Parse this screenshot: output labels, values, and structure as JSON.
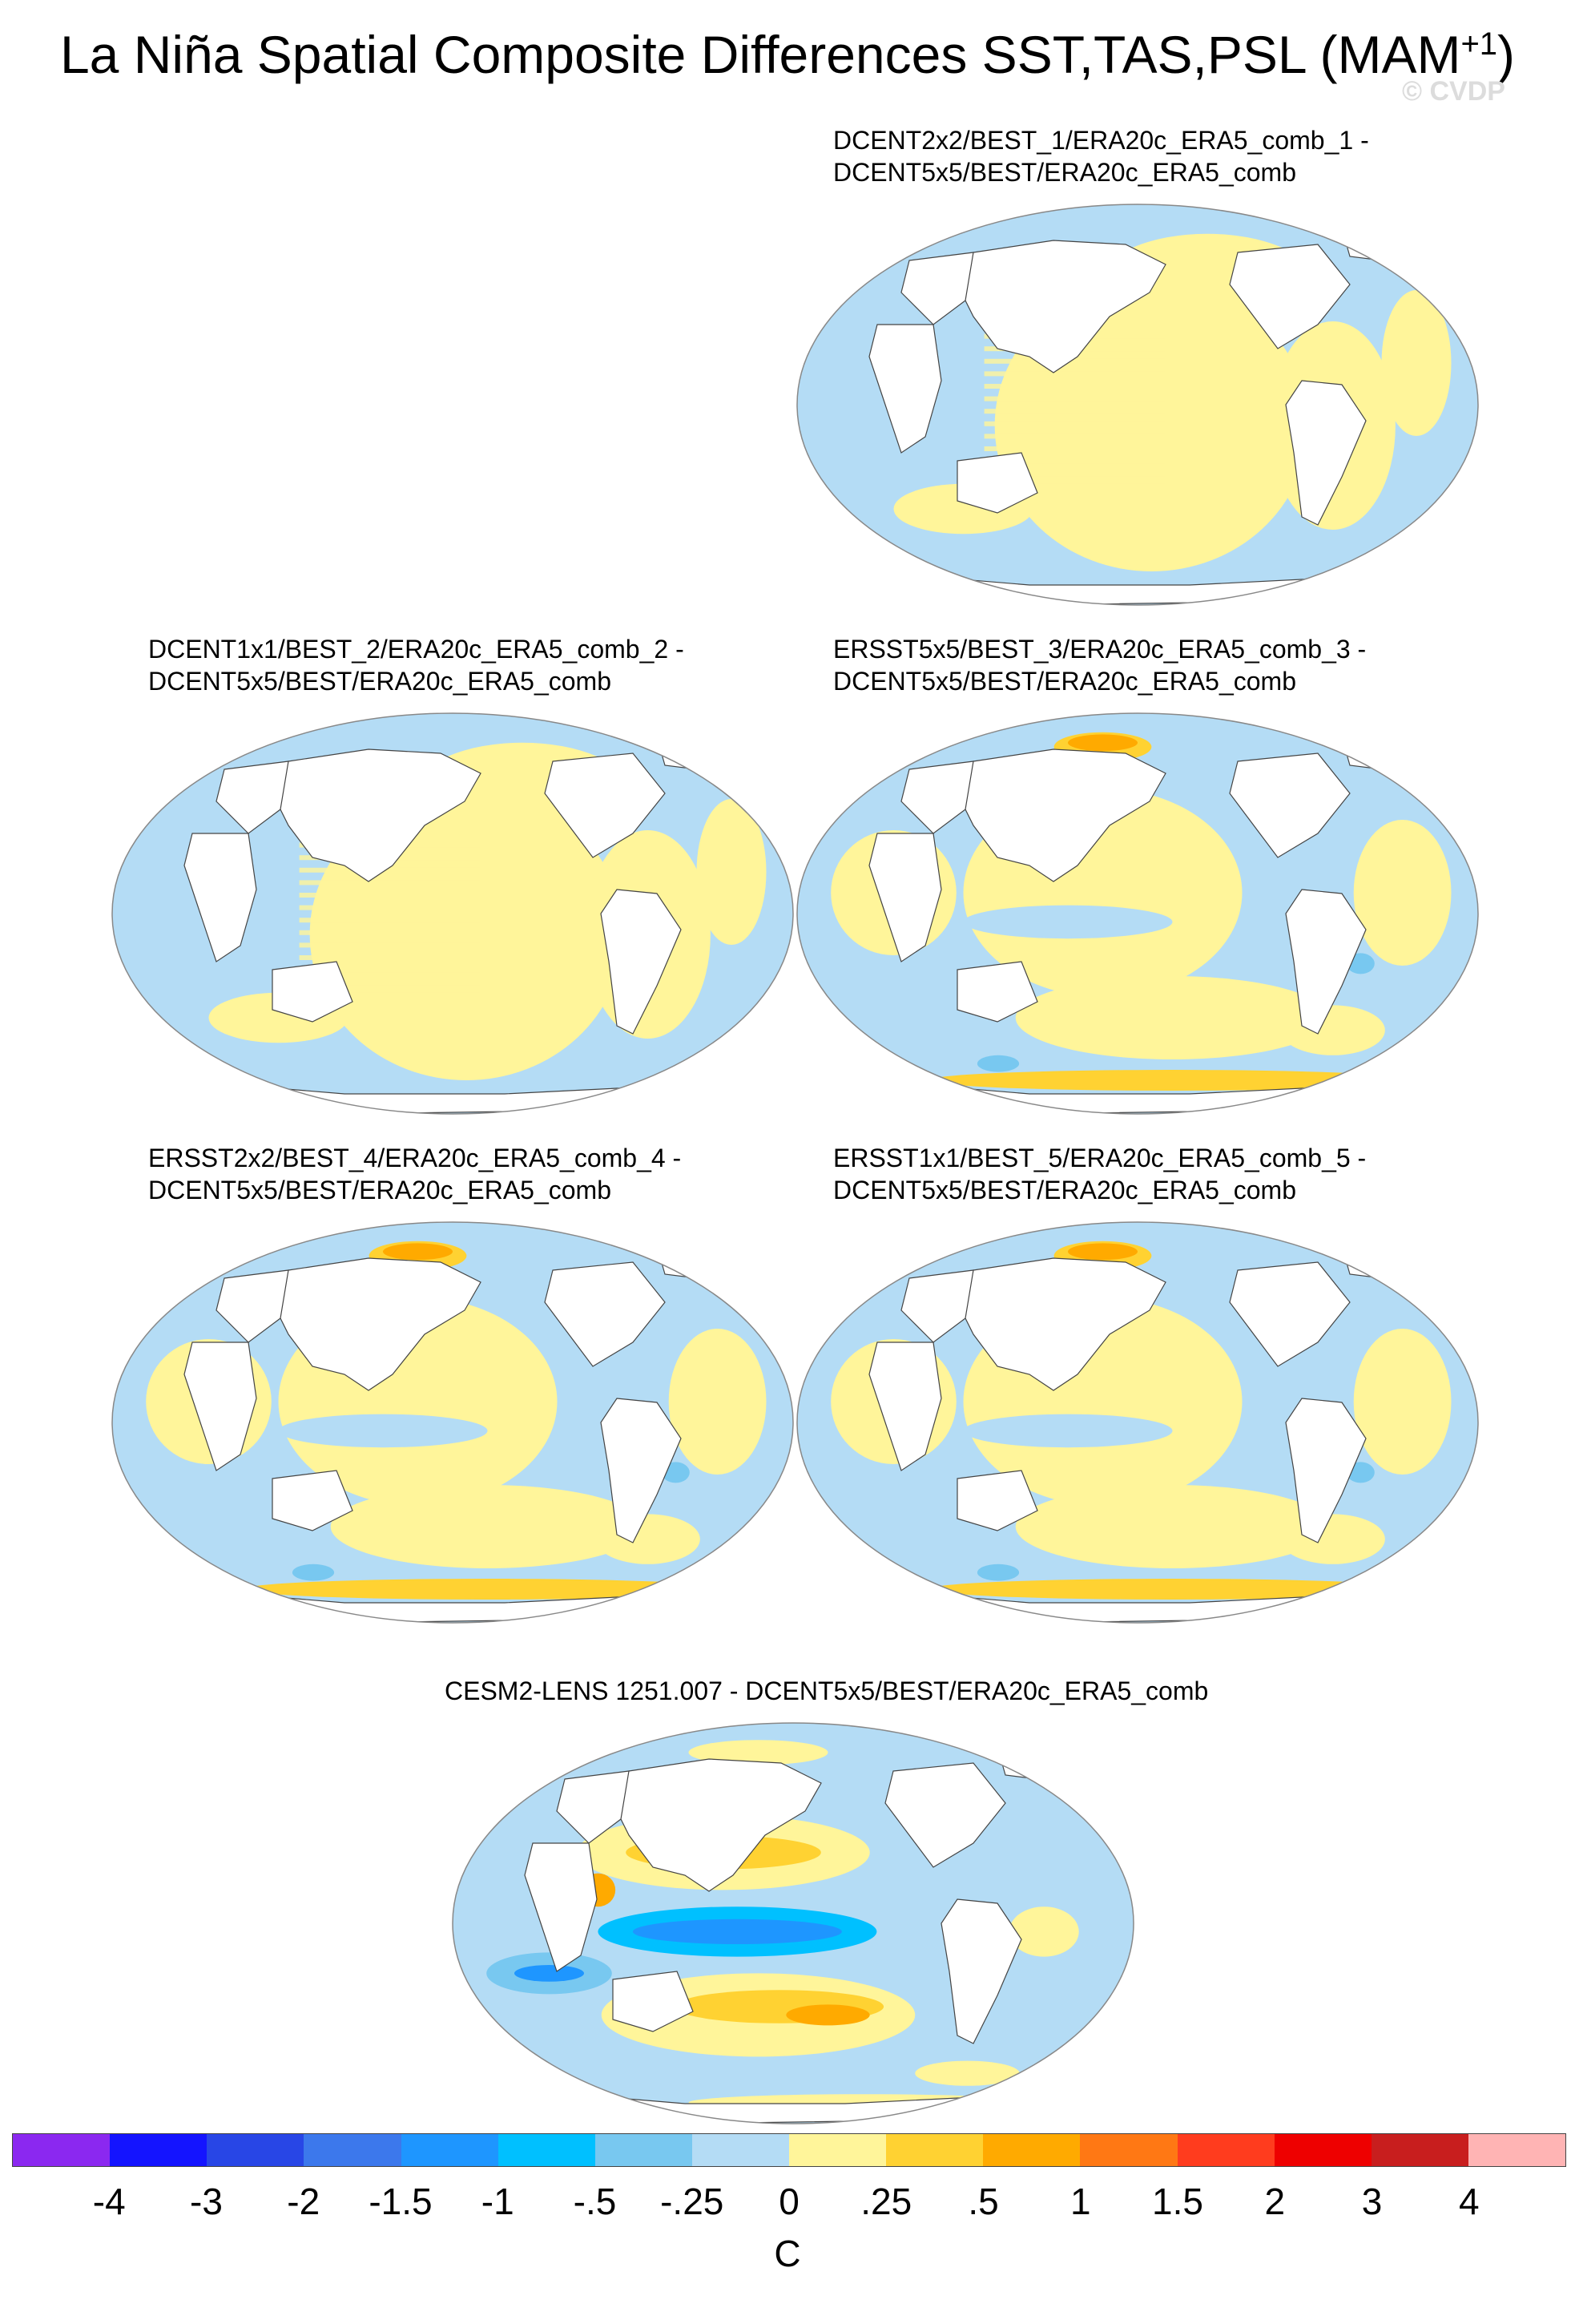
{
  "title": {
    "main": "La Niña Spatial Composite Differences SST,TAS,PSL (MAM",
    "sup": "+1",
    "close": ")"
  },
  "watermark": "© CVDP",
  "panels": [
    {
      "line1": "DCENT2x2/BEST_1/ERA20c_ERA5_comb_1 -",
      "line2": "DCENT5x5/BEST/ERA20c_ERA5_comb",
      "pattern": "dcent"
    },
    {
      "line1": "DCENT1x1/BEST_2/ERA20c_ERA5_comb_2 -",
      "line2": "DCENT5x5/BEST/ERA20c_ERA5_comb",
      "pattern": "dcent"
    },
    {
      "line1": "ERSST5x5/BEST_3/ERA20c_ERA5_comb_3 -",
      "line2": "DCENT5x5/BEST/ERA20c_ERA5_comb",
      "pattern": "ersst"
    },
    {
      "line1": "ERSST2x2/BEST_4/ERA20c_ERA5_comb_4 -",
      "line2": "DCENT5x5/BEST/ERA20c_ERA5_comb",
      "pattern": "ersst"
    },
    {
      "line1": "ERSST1x1/BEST_5/ERA20c_ERA5_comb_5 -",
      "line2": "DCENT5x5/BEST/ERA20c_ERA5_comb",
      "pattern": "ersst"
    },
    {
      "line1": "CESM2-LENS 1251.007 - DCENT5x5/BEST/ERA20c_ERA5_comb",
      "line2": "",
      "pattern": "cesm"
    }
  ],
  "colorbar": {
    "colors": [
      "#8b28f0",
      "#1414ff",
      "#2846e6",
      "#3c78ec",
      "#1e96ff",
      "#00c0ff",
      "#78c8f0",
      "#b4dcf5",
      "#fff59a",
      "#ffd232",
      "#ffaa00",
      "#ff7814",
      "#ff3c1e",
      "#ee0000",
      "#c81e1e",
      "#ffb4b4"
    ],
    "ticks": [
      "-4",
      "-3",
      "-2",
      "-1.5",
      "-1",
      "-.5",
      "-.25",
      "0",
      ".25",
      ".5",
      "1",
      "1.5",
      "2",
      "3",
      "4"
    ],
    "unit": "C"
  }
}
